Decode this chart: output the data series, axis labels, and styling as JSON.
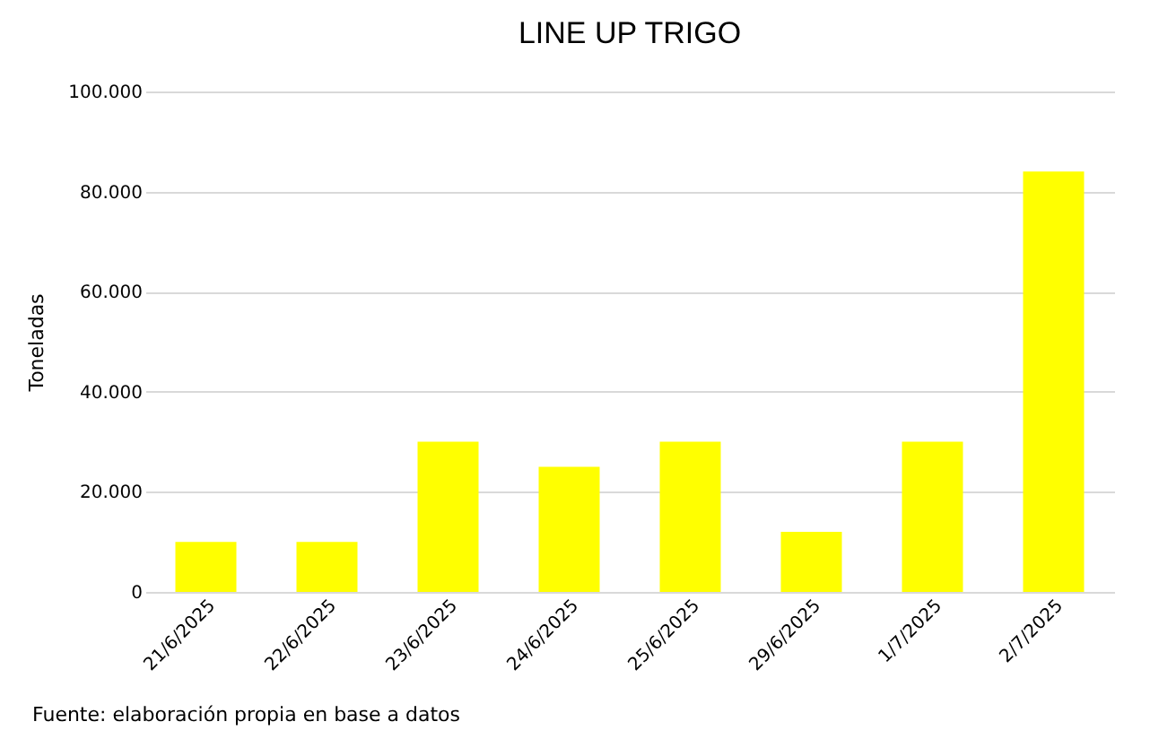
{
  "chart_data": {
    "type": "bar",
    "title": "LINE UP TRIGO",
    "ylabel": "Toneladas",
    "categories": [
      "21/6/2025",
      "22/6/2025",
      "23/6/2025",
      "24/6/2025",
      "25/6/2025",
      "29/6/2025",
      "1/7/2025",
      "2/7/2025"
    ],
    "values": [
      10000,
      10000,
      30000,
      25000,
      30000,
      12000,
      30000,
      84000
    ],
    "color": "#ffff00",
    "ylim": [
      0,
      100000
    ],
    "yticks": [
      {
        "value": 0,
        "label": "0"
      },
      {
        "value": 20000,
        "label": "20.000"
      },
      {
        "value": 40000,
        "label": "40.000"
      },
      {
        "value": 60000,
        "label": "60.000"
      },
      {
        "value": 80000,
        "label": "80.000"
      },
      {
        "value": 100000,
        "label": "100.000"
      }
    ],
    "grid": "y",
    "annotations": [
      "Fuente: elaboración propia en base a datos"
    ]
  }
}
